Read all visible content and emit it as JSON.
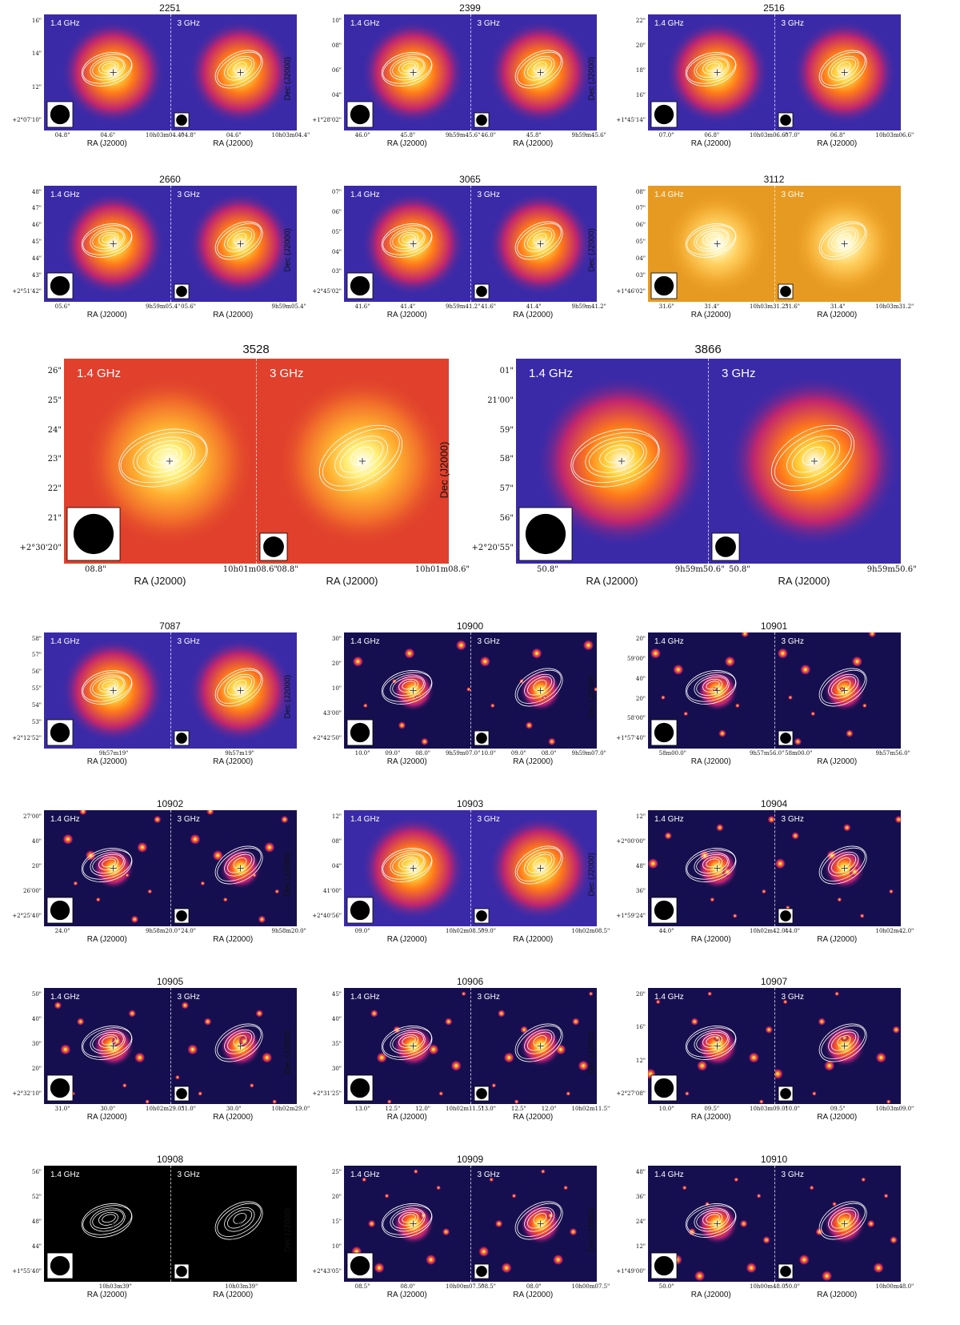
{
  "figure": {
    "freq_labels": [
      "1.4 GHz",
      "3 GHz"
    ],
    "ra_axis_label": "RA (J2000)",
    "dec_axis_label": "Dec (J2000)",
    "panels": [
      {
        "id": "2251",
        "scheme": "blue",
        "dec_ticks": [
          "16\"",
          "14\"",
          "12\"",
          "+2°07'10\""
        ],
        "ra_ticks_left": [
          "04.8\"",
          "04.6\"",
          "10h03m04.4\""
        ],
        "ra_ticks_right": [
          "04.8\"",
          "04.6\"",
          "10h03m04.4\""
        ]
      },
      {
        "id": "2399",
        "scheme": "blue",
        "dec_ticks": [
          "10\"",
          "08\"",
          "06\"",
          "04\"",
          "+1°28'02\""
        ],
        "ra_ticks_left": [
          "46.0\"",
          "45.8\"",
          "9h59m45.6\""
        ],
        "ra_ticks_right": [
          "46.0\"",
          "45.8\"",
          "9h59m45.6\""
        ]
      },
      {
        "id": "2516",
        "scheme": "blue",
        "dec_ticks": [
          "22\"",
          "20\"",
          "18\"",
          "16\"",
          "+1°45'14\""
        ],
        "ra_ticks_left": [
          "07.0\"",
          "06.8\"",
          "10h03m06.6\""
        ],
        "ra_ticks_right": [
          "07.0\"",
          "06.8\"",
          "10h03m06.6\""
        ]
      },
      {
        "id": "2660",
        "scheme": "blue",
        "dec_ticks": [
          "48\"",
          "47\"",
          "46\"",
          "45\"",
          "44\"",
          "43\"",
          "+2°51'42\""
        ],
        "ra_ticks_left": [
          "05.6\"",
          "9h59m05.4\""
        ],
        "ra_ticks_right": [
          "05.6\"",
          "9h59m05.4\""
        ]
      },
      {
        "id": "3065",
        "scheme": "blue",
        "dec_ticks": [
          "07\"",
          "06\"",
          "05\"",
          "04\"",
          "03\"",
          "+2°45'02\""
        ],
        "ra_ticks_left": [
          "41.6\"",
          "41.4\"",
          "9h59m41.2\""
        ],
        "ra_ticks_right": [
          "41.6\"",
          "41.4\"",
          "9h59m41.2\""
        ]
      },
      {
        "id": "3112",
        "scheme": "orange",
        "dec_ticks": [
          "08\"",
          "07\"",
          "06\"",
          "05\"",
          "04\"",
          "03\"",
          "+1°46'02\""
        ],
        "ra_ticks_left": [
          "31.6\"",
          "31.4\"",
          "10h03m31.2\""
        ],
        "ra_ticks_right": [
          "31.6\"",
          "31.4\"",
          "10h03m31.2\""
        ]
      },
      {
        "id": "3528",
        "scheme": "red",
        "dec_ticks": [
          "26\"",
          "25\"",
          "24\"",
          "23\"",
          "22\"",
          "21\"",
          "+2°30'20\""
        ],
        "ra_ticks_left": [
          "08.8\"",
          "10h01m08.6\""
        ],
        "ra_ticks_right": [
          "08.8\"",
          "10h01m08.6\""
        ]
      },
      {
        "id": "3866",
        "scheme": "blue",
        "dec_ticks": [
          "01\"",
          "21'00\"",
          "59\"",
          "58\"",
          "57\"",
          "56\"",
          "+2°20'55\""
        ],
        "ra_ticks_left": [
          "50.8\"",
          "9h59m50.6\""
        ],
        "ra_ticks_right": [
          "50.8\"",
          "9h59m50.6\""
        ]
      },
      {
        "id": "7087",
        "scheme": "blue",
        "dec_ticks": [
          "58\"",
          "57\"",
          "56\"",
          "55\"",
          "54\"",
          "53\"",
          "+2°12'52\""
        ],
        "ra_ticks_left": [
          "9h57m19\""
        ],
        "ra_ticks_right": [
          "9h57m19\""
        ]
      },
      {
        "id": "10900",
        "scheme": "dark",
        "dec_ticks": [
          "30\"",
          "20\"",
          "10\"",
          "43'00\"",
          "+2°42'50\""
        ],
        "ra_ticks_left": [
          "10.0\"",
          "09.0\"",
          "08.0\"",
          "9h59m07.0\""
        ],
        "ra_ticks_right": [
          "10.0\"",
          "09.0\"",
          "08.0\"",
          "9h59m07.0\""
        ]
      },
      {
        "id": "10901",
        "scheme": "dark",
        "dec_ticks": [
          "20\"",
          "59'00\"",
          "40\"",
          "20\"",
          "58'00\"",
          "+1°57'40\""
        ],
        "ra_ticks_left": [
          "58m00.0\"",
          "9h57m56.0\""
        ],
        "ra_ticks_right": [
          "58m00.0\"",
          "9h57m56.0\""
        ]
      },
      {
        "id": "10902",
        "scheme": "dark",
        "dec_ticks": [
          "27'00\"",
          "40\"",
          "20\"",
          "26'00\"",
          "+2°25'40\""
        ],
        "ra_ticks_left": [
          "24.0\"",
          "9h58m20.0\""
        ],
        "ra_ticks_right": [
          "24.0\"",
          "9h58m20.0\""
        ]
      },
      {
        "id": "10903",
        "scheme": "blue",
        "dec_ticks": [
          "12\"",
          "08\"",
          "04\"",
          "41'00\"",
          "+2°40'56\""
        ],
        "ra_ticks_left": [
          "09.0\"",
          "10h02m08.5\""
        ],
        "ra_ticks_right": [
          "09.0\"",
          "10h02m08.5\""
        ]
      },
      {
        "id": "10904",
        "scheme": "dark",
        "dec_ticks": [
          "12\"",
          "+2°00'00\"",
          "48\"",
          "36\"",
          "+1°59'24\""
        ],
        "ra_ticks_left": [
          "44.0\"",
          "10h02m42.0\""
        ],
        "ra_ticks_right": [
          "44.0\"",
          "10h02m42.0\""
        ]
      },
      {
        "id": "10905",
        "scheme": "dark",
        "dec_ticks": [
          "50\"",
          "40\"",
          "30\"",
          "20\"",
          "+2°32'10\""
        ],
        "ra_ticks_left": [
          "31.0\"",
          "30.0\"",
          "10h02m29.0\""
        ],
        "ra_ticks_right": [
          "31.0\"",
          "30.0\"",
          "10h02m29.0\""
        ]
      },
      {
        "id": "10906",
        "scheme": "dark",
        "dec_ticks": [
          "45\"",
          "40\"",
          "35\"",
          "30\"",
          "+2°31'25\""
        ],
        "ra_ticks_left": [
          "13.0\"",
          "12.5\"",
          "12.0\"",
          "10h02m11.5\""
        ],
        "ra_ticks_right": [
          "13.0\"",
          "12.5\"",
          "12.0\"",
          "10h02m11.5\""
        ]
      },
      {
        "id": "10907",
        "scheme": "dark",
        "dec_ticks": [
          "20\"",
          "16\"",
          "12\"",
          "+2°27'08\""
        ],
        "ra_ticks_left": [
          "10.0\"",
          "09.5\"",
          "10h03m09.0\""
        ],
        "ra_ticks_right": [
          "10.0\"",
          "09.5\"",
          "10h03m09.0\""
        ]
      },
      {
        "id": "10908",
        "scheme": "black",
        "dec_ticks": [
          "56\"",
          "52\"",
          "48\"",
          "44\"",
          "+1°55'40\""
        ],
        "ra_ticks_left": [
          "10h03m39\""
        ],
        "ra_ticks_right": [
          "10h03m39\""
        ]
      },
      {
        "id": "10909",
        "scheme": "dark",
        "dec_ticks": [
          "25\"",
          "20\"",
          "15\"",
          "10\"",
          "+2°43'05\""
        ],
        "ra_ticks_left": [
          "08.5\"",
          "08.0\"",
          "10h00m07.5\""
        ],
        "ra_ticks_right": [
          "08.5\"",
          "08.0\"",
          "10h00m07.5\""
        ]
      },
      {
        "id": "10910",
        "scheme": "dark",
        "dec_ticks": [
          "48\"",
          "36\"",
          "24\"",
          "12\"",
          "+1°49'00\""
        ],
        "ra_ticks_left": [
          "50.0\"",
          "10h00m48.0\""
        ],
        "ra_ticks_right": [
          "50.0\"",
          "10h00m48.0\""
        ]
      }
    ]
  },
  "colors": {
    "blue_bg": "#3a2aa8",
    "dark_bg": "#160f4f",
    "orange_bg": "#e79a22",
    "red_bg": "#e0402c",
    "black_bg": "#000000",
    "contour": "#ffffff"
  }
}
